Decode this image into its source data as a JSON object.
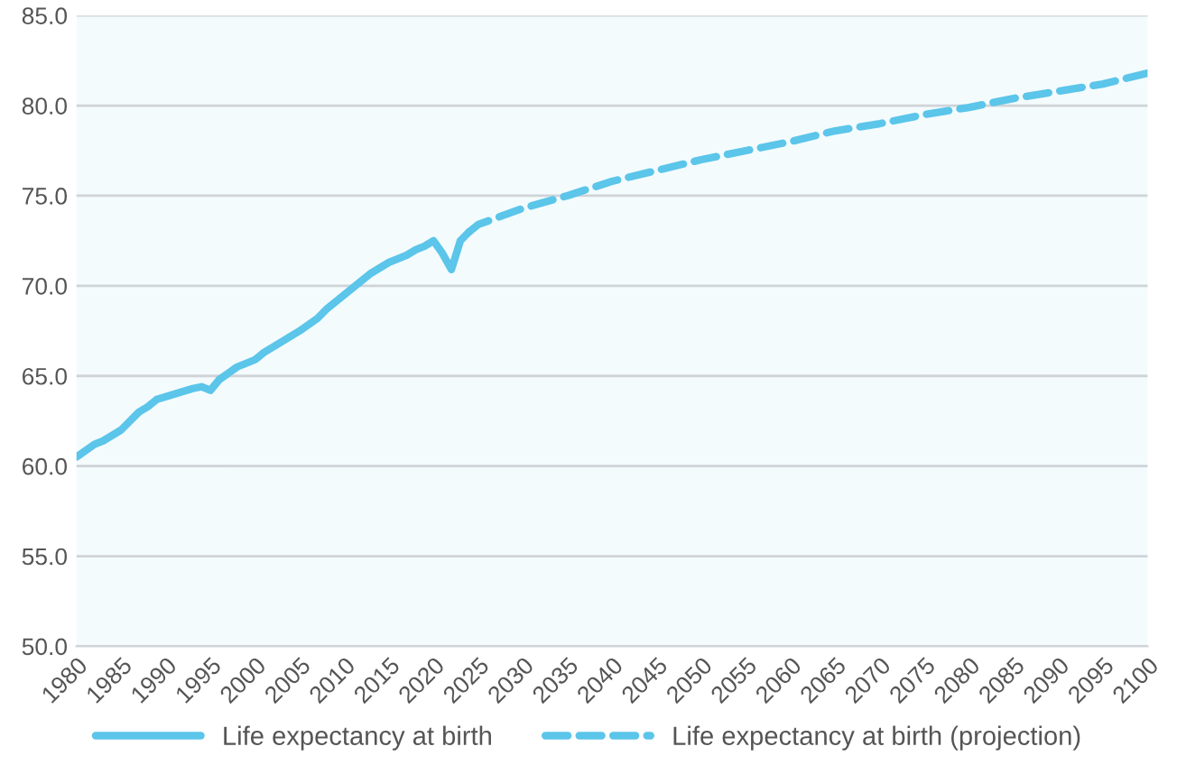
{
  "chart_data": {
    "type": "line",
    "xlim": [
      1980,
      2100
    ],
    "xticks": [
      1980,
      1985,
      1990,
      1995,
      2000,
      2005,
      2010,
      2015,
      2020,
      2025,
      2030,
      2035,
      2040,
      2045,
      2050,
      2055,
      2060,
      2065,
      2070,
      2075,
      2080,
      2085,
      2090,
      2095,
      2100
    ],
    "ylim": [
      50,
      85
    ],
    "yticks": [
      {
        "value": 50,
        "label": "50.0"
      },
      {
        "value": 55,
        "label": "55.0"
      },
      {
        "value": 60,
        "label": "60.0"
      },
      {
        "value": 65,
        "label": "65.0"
      },
      {
        "value": 70,
        "label": "70.0"
      },
      {
        "value": 75,
        "label": "75.0"
      },
      {
        "value": 80,
        "label": "80.0"
      },
      {
        "value": 85,
        "label": "85.0"
      }
    ],
    "grid": "y",
    "legend": "bottom",
    "series": [
      {
        "name": "Life expectancy at birth",
        "color": "#5bc5ea",
        "line_style": "solid",
        "x": [
          1980,
          1982,
          1983,
          1985,
          1986,
          1987,
          1988,
          1989,
          1991,
          1993,
          1994,
          1995,
          1996,
          1998,
          2000,
          2001,
          2003,
          2005,
          2007,
          2008,
          2009,
          2010,
          2011,
          2012,
          2013,
          2014,
          2015,
          2017,
          2018,
          2019,
          2020,
          2021,
          2022,
          2023,
          2024
        ],
        "values": [
          60.5,
          61.2,
          61.4,
          62.0,
          62.5,
          63.0,
          63.3,
          63.7,
          64.0,
          64.3,
          64.4,
          64.2,
          64.8,
          65.5,
          65.9,
          66.3,
          66.9,
          67.5,
          68.2,
          68.7,
          69.1,
          69.5,
          69.9,
          70.3,
          70.7,
          71.0,
          71.3,
          71.7,
          72.0,
          72.2,
          72.5,
          71.8,
          70.9,
          72.5,
          73.0
        ]
      },
      {
        "name": "Life expectancy at birth (projection)",
        "color": "#5bc5ea",
        "line_style": "dashed",
        "x": [
          2024,
          2025,
          2030,
          2035,
          2040,
          2045,
          2050,
          2055,
          2060,
          2065,
          2070,
          2075,
          2080,
          2085,
          2090,
          2095,
          2100
        ],
        "values": [
          73.0,
          73.4,
          74.3,
          75.0,
          75.8,
          76.4,
          77.0,
          77.5,
          78.0,
          78.6,
          79.0,
          79.5,
          79.9,
          80.4,
          80.8,
          81.2,
          81.8
        ]
      }
    ]
  }
}
